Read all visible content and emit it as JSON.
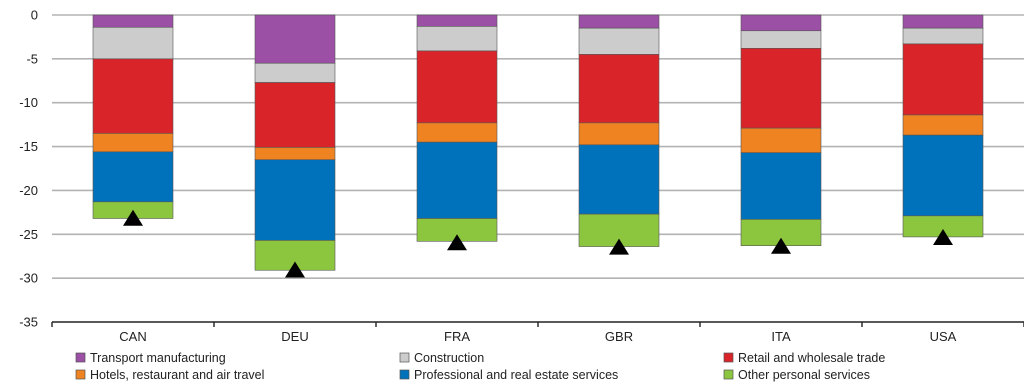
{
  "chart_data": {
    "type": "bar",
    "stacked": true,
    "categories": [
      "CAN",
      "DEU",
      "FRA",
      "GBR",
      "ITA",
      "USA"
    ],
    "ylim": [
      -35,
      0
    ],
    "yticks": [
      0,
      -5,
      -10,
      -15,
      -20,
      -25,
      -30,
      -35
    ],
    "grid": true,
    "legend_position": "bottom",
    "series": [
      {
        "name": "Transport manufacturing",
        "color": "#9b4fa5",
        "values": [
          -1.4,
          -5.5,
          -1.3,
          -1.5,
          -1.8,
          -1.5
        ]
      },
      {
        "name": "Construction",
        "color": "#cccccc",
        "values": [
          -3.6,
          -2.2,
          -2.8,
          -3.0,
          -2.0,
          -1.8
        ]
      },
      {
        "name": "Retail and wholesale trade",
        "color": "#d9242a",
        "values": [
          -8.5,
          -7.4,
          -8.2,
          -7.8,
          -9.1,
          -8.1
        ]
      },
      {
        "name": "Hotels, restaurant and air travel",
        "color": "#f08321",
        "values": [
          -2.1,
          -1.4,
          -2.2,
          -2.5,
          -2.8,
          -2.3
        ]
      },
      {
        "name": "Professional and real estate services",
        "color": "#0072bc",
        "values": [
          -5.7,
          -9.2,
          -8.7,
          -7.9,
          -7.6,
          -9.2
        ]
      },
      {
        "name": "Other personal services",
        "color": "#8cc63f",
        "values": [
          -1.9,
          -3.4,
          -2.6,
          -3.7,
          -3.0,
          -2.4
        ]
      }
    ],
    "total_markers": [
      -23.2,
      -29.1,
      -26.0,
      -26.5,
      -26.4,
      -25.4
    ]
  }
}
